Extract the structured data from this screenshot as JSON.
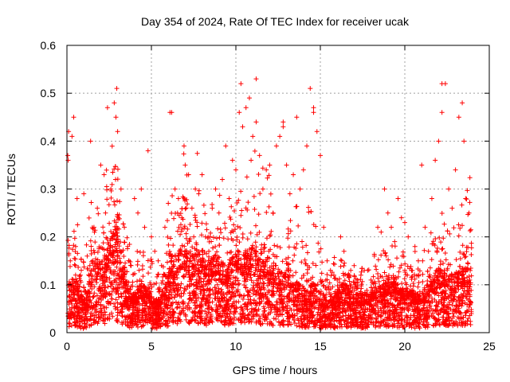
{
  "chart_data": {
    "type": "scatter",
    "title": "Day 354 of 2024, Rate Of TEC Index for receiver ucak",
    "xlabel": "GPS time / hours",
    "ylabel": "ROTI / TECUs",
    "xlim": [
      0,
      25
    ],
    "ylim": [
      0,
      0.6
    ],
    "x_ticks": [
      "0",
      "5",
      "10",
      "15",
      "20",
      "25"
    ],
    "y_ticks": [
      "0",
      "0.1",
      "0.2",
      "0.3",
      "0.4",
      "0.5",
      "0.6"
    ],
    "grid": true,
    "marker": "+",
    "marker_color": "#ff0000",
    "series": [
      {
        "name": "ROTI",
        "x": [
          0.05,
          0.1,
          0.2,
          0.3,
          0.4,
          0.5,
          0.6,
          0.8,
          1.0,
          1.2,
          1.4,
          1.6,
          1.8,
          2.0,
          2.2,
          2.4,
          2.6,
          2.8,
          2.9,
          3.0,
          3.2,
          3.4,
          3.6,
          3.8,
          4.0,
          4.2,
          4.4,
          4.6,
          4.8,
          5.0,
          5.2,
          5.4,
          5.6,
          5.8,
          6.0,
          6.2,
          6.4,
          6.6,
          6.8,
          7.0,
          7.2,
          7.4,
          7.6,
          7.8,
          8.0,
          8.2,
          8.4,
          8.6,
          8.8,
          9.0,
          9.2,
          9.4,
          9.6,
          9.8,
          10.0,
          10.2,
          10.4,
          10.6,
          10.8,
          11.0,
          11.2,
          11.4,
          11.6,
          11.8,
          12.0,
          12.2,
          12.4,
          12.6,
          12.8,
          13.0,
          13.2,
          13.4,
          13.6,
          13.8,
          14.0,
          14.2,
          14.4,
          14.6,
          14.8,
          15.0,
          15.2,
          15.4,
          15.6,
          15.8,
          16.0,
          16.2,
          16.4,
          16.6,
          16.8,
          17.0,
          17.2,
          17.4,
          17.6,
          17.8,
          18.0,
          18.2,
          18.4,
          18.6,
          18.8,
          19.0,
          19.2,
          19.4,
          19.6,
          19.8,
          20.0,
          20.2,
          20.4,
          20.6,
          20.8,
          21.0,
          21.2,
          21.4,
          21.6,
          21.8,
          22.0,
          22.2,
          22.4,
          22.6,
          22.8,
          23.0,
          23.2,
          23.4,
          23.6,
          23.8,
          0.07,
          2.95,
          11.2,
          10.3,
          14.6,
          22.2,
          23.5,
          6.1,
          12.8,
          10.9
        ],
        "y": [
          0.37,
          0.42,
          0.15,
          0.41,
          0.45,
          0.14,
          0.28,
          0.12,
          0.29,
          0.16,
          0.4,
          0.22,
          0.26,
          0.35,
          0.33,
          0.47,
          0.3,
          0.48,
          0.45,
          0.42,
          0.3,
          0.22,
          0.18,
          0.14,
          0.28,
          0.25,
          0.3,
          0.22,
          0.38,
          0.2,
          0.17,
          0.15,
          0.14,
          0.22,
          0.27,
          0.46,
          0.3,
          0.28,
          0.24,
          0.35,
          0.33,
          0.26,
          0.3,
          0.29,
          0.33,
          0.2,
          0.17,
          0.26,
          0.3,
          0.25,
          0.32,
          0.39,
          0.28,
          0.36,
          0.34,
          0.46,
          0.43,
          0.47,
          0.49,
          0.41,
          0.44,
          0.37,
          0.3,
          0.34,
          0.35,
          0.25,
          0.39,
          0.41,
          0.44,
          0.35,
          0.29,
          0.33,
          0.45,
          0.3,
          0.34,
          0.39,
          0.51,
          0.46,
          0.42,
          0.37,
          0.22,
          0.15,
          0.13,
          0.12,
          0.11,
          0.2,
          0.17,
          0.12,
          0.13,
          0.14,
          0.11,
          0.12,
          0.13,
          0.13,
          0.11,
          0.16,
          0.22,
          0.21,
          0.3,
          0.25,
          0.22,
          0.19,
          0.28,
          0.24,
          0.23,
          0.2,
          0.13,
          0.18,
          0.15,
          0.35,
          0.22,
          0.17,
          0.28,
          0.36,
          0.4,
          0.46,
          0.52,
          0.3,
          0.26,
          0.34,
          0.45,
          0.48,
          0.28,
          0.25,
          0.36,
          0.51,
          0.53,
          0.52,
          0.47,
          0.52,
          0.4,
          0.46,
          0.43,
          0.36
        ]
      }
    ],
    "density": {
      "centers": [
        0.3,
        0.5,
        0.8,
        1.1,
        1.4,
        1.7,
        2.0,
        2.3,
        2.6,
        2.9,
        3.2,
        3.5,
        3.8,
        4.1,
        4.4,
        4.7,
        5.0,
        5.3,
        5.6,
        5.9,
        6.2,
        6.5,
        6.8,
        7.1,
        7.4,
        7.7,
        8.0,
        8.3,
        8.6,
        8.9,
        9.2,
        9.5,
        9.8,
        10.1,
        10.4,
        10.7,
        11.0,
        11.3,
        11.6,
        11.9,
        12.2,
        12.5,
        12.8,
        13.1,
        13.4,
        13.7,
        14.0,
        14.3,
        14.6,
        14.9,
        15.2,
        15.5,
        15.8,
        16.1,
        16.4,
        16.7,
        17.0,
        17.3,
        17.6,
        17.9,
        18.2,
        18.5,
        18.8,
        19.1,
        19.4,
        19.7,
        20.0,
        20.3,
        20.6,
        20.9,
        21.2,
        21.5,
        21.8,
        22.1,
        22.4,
        22.7,
        23.0,
        23.3,
        23.6,
        23.8
      ],
      "typical": [
        0.08,
        0.09,
        0.06,
        0.05,
        0.1,
        0.12,
        0.11,
        0.12,
        0.16,
        0.17,
        0.12,
        0.08,
        0.06,
        0.06,
        0.08,
        0.07,
        0.06,
        0.05,
        0.06,
        0.08,
        0.12,
        0.12,
        0.14,
        0.13,
        0.12,
        0.13,
        0.12,
        0.1,
        0.12,
        0.12,
        0.11,
        0.1,
        0.12,
        0.13,
        0.12,
        0.12,
        0.14,
        0.12,
        0.11,
        0.12,
        0.1,
        0.1,
        0.09,
        0.1,
        0.08,
        0.08,
        0.06,
        0.07,
        0.08,
        0.07,
        0.05,
        0.05,
        0.06,
        0.07,
        0.08,
        0.07,
        0.06,
        0.06,
        0.06,
        0.06,
        0.07,
        0.07,
        0.08,
        0.08,
        0.08,
        0.07,
        0.07,
        0.07,
        0.06,
        0.06,
        0.07,
        0.08,
        0.09,
        0.1,
        0.1,
        0.09,
        0.09,
        0.1,
        0.1,
        0.1
      ],
      "spread": [
        0.22,
        0.2,
        0.16,
        0.12,
        0.18,
        0.2,
        0.2,
        0.22,
        0.28,
        0.3,
        0.24,
        0.18,
        0.12,
        0.12,
        0.16,
        0.14,
        0.12,
        0.1,
        0.12,
        0.16,
        0.24,
        0.24,
        0.28,
        0.28,
        0.26,
        0.26,
        0.24,
        0.2,
        0.22,
        0.24,
        0.22,
        0.22,
        0.26,
        0.26,
        0.26,
        0.26,
        0.3,
        0.28,
        0.24,
        0.26,
        0.22,
        0.22,
        0.2,
        0.24,
        0.2,
        0.2,
        0.18,
        0.22,
        0.24,
        0.26,
        0.12,
        0.1,
        0.12,
        0.12,
        0.14,
        0.12,
        0.1,
        0.1,
        0.1,
        0.1,
        0.12,
        0.14,
        0.18,
        0.16,
        0.14,
        0.12,
        0.12,
        0.14,
        0.12,
        0.12,
        0.14,
        0.16,
        0.18,
        0.22,
        0.22,
        0.18,
        0.18,
        0.2,
        0.22,
        0.24
      ]
    }
  }
}
